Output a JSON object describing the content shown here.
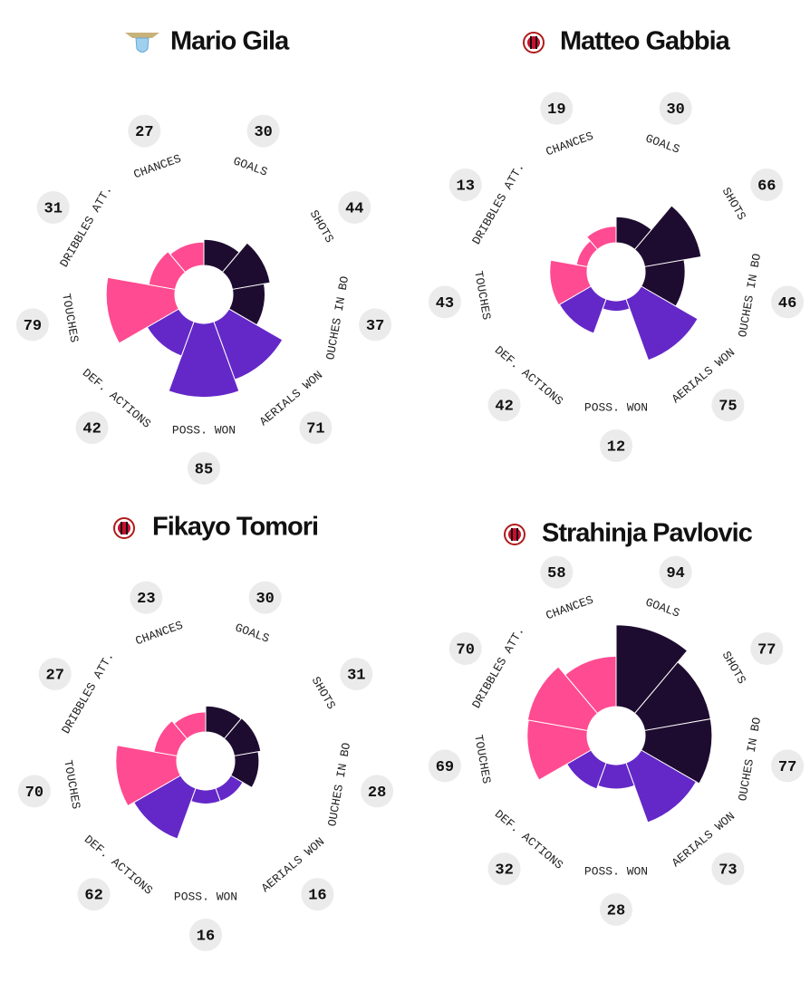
{
  "chart_data": [
    {
      "type": "pizza",
      "title": "Mario Gila",
      "categories": [
        "GOALS",
        "SHOTS",
        "OUCHES IN BO",
        "AERIALS WON",
        "POSS. WON",
        "DEF. ACTIONS",
        "TOUCHES",
        "DRIBBLES ATT.",
        "CHANCES"
      ],
      "values": [
        30,
        44,
        37,
        71,
        85,
        42,
        79,
        31,
        27
      ],
      "colors": [
        "#1e0c30",
        "#1e0c30",
        "#1e0c30",
        "#6428c8",
        "#6428c8",
        "#6428c8",
        "#ff4b91",
        "#ff4b91",
        "#ff4b91"
      ],
      "ylim": [
        0,
        100
      ]
    },
    {
      "type": "pizza",
      "title": "Matteo Gabbia",
      "categories": [
        "GOALS",
        "SHOTS",
        "OUCHES IN BO",
        "AERIALS WON",
        "POSS. WON",
        "DEF. ACTIONS",
        "TOUCHES",
        "DRIBBLES ATT.",
        "CHANCES"
      ],
      "values": [
        30,
        66,
        46,
        75,
        12,
        42,
        43,
        13,
        19
      ],
      "colors": [
        "#1e0c30",
        "#1e0c30",
        "#1e0c30",
        "#6428c8",
        "#6428c8",
        "#6428c8",
        "#ff4b91",
        "#ff4b91",
        "#ff4b91"
      ],
      "ylim": [
        0,
        100
      ]
    },
    {
      "type": "pizza",
      "title": "Fikayo Tomori",
      "categories": [
        "GOALS",
        "SHOTS",
        "OUCHES IN BO",
        "AERIALS WON",
        "POSS. WON",
        "DEF. ACTIONS",
        "TOUCHES",
        "DRIBBLES ATT.",
        "CHANCES"
      ],
      "values": [
        30,
        31,
        28,
        16,
        16,
        62,
        70,
        27,
        23
      ],
      "colors": [
        "#1e0c30",
        "#1e0c30",
        "#1e0c30",
        "#6428c8",
        "#6428c8",
        "#6428c8",
        "#ff4b91",
        "#ff4b91",
        "#ff4b91"
      ],
      "ylim": [
        0,
        100
      ]
    },
    {
      "type": "pizza",
      "title": "Strahinja Pavlovic",
      "categories": [
        "GOALS",
        "SHOTS",
        "OUCHES IN BO",
        "AERIALS WON",
        "POSS. WON",
        "DEF. ACTIONS",
        "TOUCHES",
        "DRIBBLES ATT.",
        "CHANCES"
      ],
      "values": [
        94,
        77,
        77,
        73,
        28,
        32,
        69,
        70,
        58
      ],
      "colors": [
        "#1e0c30",
        "#1e0c30",
        "#1e0c30",
        "#6428c8",
        "#6428c8",
        "#6428c8",
        "#ff4b91",
        "#ff4b91",
        "#ff4b91"
      ],
      "ylim": [
        0,
        100
      ]
    }
  ]
}
